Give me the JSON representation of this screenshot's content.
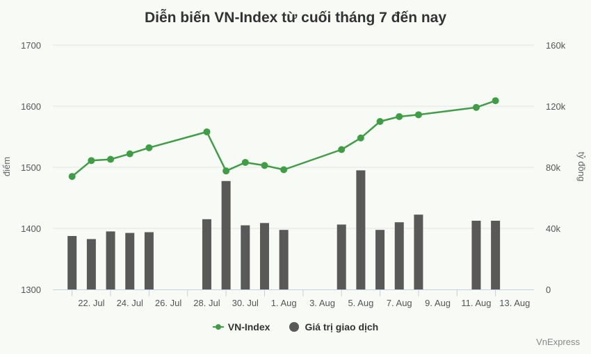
{
  "chart_data": {
    "type": "bar",
    "title": "Diễn biến VN-Index từ cuối tháng 7 đến nay",
    "credit": "VnExpress",
    "colors": {
      "line": "#3f9e45",
      "bar": "#595959",
      "grid": "#e4e4e4",
      "axis": "#c5cfe0"
    },
    "x_ticks": [
      "22. Jul",
      "24. Jul",
      "26. Jul",
      "28. Jul",
      "30. Jul",
      "1. Aug",
      "3. Aug",
      "5. Aug",
      "7. Aug",
      "9. Aug",
      "11. Aug",
      "13. Aug"
    ],
    "y_left": {
      "title": "điểm",
      "ticks": [
        "1300",
        "1400",
        "1500",
        "1600",
        "1700"
      ],
      "range": [
        1300,
        1700
      ]
    },
    "y_right": {
      "title": "tỷ đồng",
      "ticks": [
        "0",
        "40k",
        "80k",
        "120k",
        "160k"
      ],
      "range": [
        0,
        160000
      ]
    },
    "x_range": [
      "2025-07-20",
      "2025-08-14"
    ],
    "legend_position": "bottom",
    "series": [
      {
        "name": "VN-Index",
        "type": "line",
        "axis": "left",
        "points": [
          {
            "date": "2025-07-21",
            "value": 1485
          },
          {
            "date": "2025-07-22",
            "value": 1511
          },
          {
            "date": "2025-07-23",
            "value": 1513
          },
          {
            "date": "2025-07-24",
            "value": 1522
          },
          {
            "date": "2025-07-25",
            "value": 1532
          },
          {
            "date": "2025-07-28",
            "value": 1558
          },
          {
            "date": "2025-07-29",
            "value": 1494
          },
          {
            "date": "2025-07-30",
            "value": 1508
          },
          {
            "date": "2025-07-31",
            "value": 1503
          },
          {
            "date": "2025-08-01",
            "value": 1496
          },
          {
            "date": "2025-08-04",
            "value": 1529
          },
          {
            "date": "2025-08-05",
            "value": 1548
          },
          {
            "date": "2025-08-06",
            "value": 1575
          },
          {
            "date": "2025-08-07",
            "value": 1583
          },
          {
            "date": "2025-08-08",
            "value": 1586
          },
          {
            "date": "2025-08-11",
            "value": 1598
          },
          {
            "date": "2025-08-12",
            "value": 1609
          }
        ]
      },
      {
        "name": "Giá trị giao dịch",
        "type": "bar",
        "axis": "right",
        "points": [
          {
            "date": "2025-07-21",
            "value": 35000
          },
          {
            "date": "2025-07-22",
            "value": 33000
          },
          {
            "date": "2025-07-23",
            "value": 38000
          },
          {
            "date": "2025-07-24",
            "value": 37000
          },
          {
            "date": "2025-07-25",
            "value": 37500
          },
          {
            "date": "2025-07-28",
            "value": 46000
          },
          {
            "date": "2025-07-29",
            "value": 71000
          },
          {
            "date": "2025-07-30",
            "value": 42000
          },
          {
            "date": "2025-07-31",
            "value": 43500
          },
          {
            "date": "2025-08-01",
            "value": 39000
          },
          {
            "date": "2025-08-04",
            "value": 42500
          },
          {
            "date": "2025-08-05",
            "value": 78000
          },
          {
            "date": "2025-08-06",
            "value": 39000
          },
          {
            "date": "2025-08-07",
            "value": 44000
          },
          {
            "date": "2025-08-08",
            "value": 49000
          },
          {
            "date": "2025-08-11",
            "value": 45000
          },
          {
            "date": "2025-08-12",
            "value": 45000
          }
        ]
      }
    ]
  }
}
